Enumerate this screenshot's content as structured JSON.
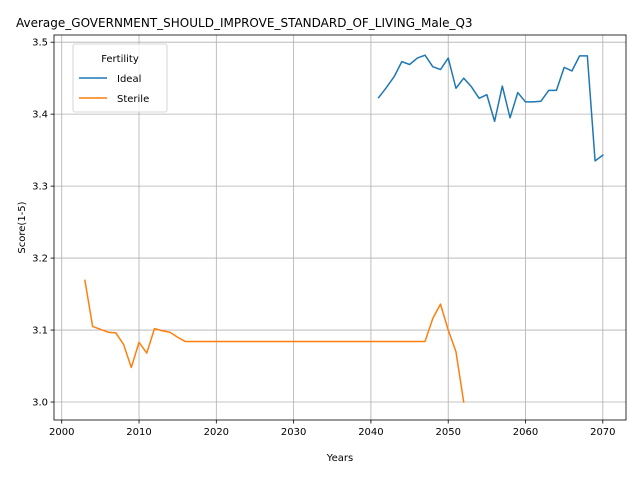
{
  "chart_data": {
    "type": "line",
    "title": "Average_GOVERNMENT_SHOULD_IMPROVE_STANDARD_OF_LIVING_Male_Q3",
    "xlabel": "Years",
    "ylabel": "Score(1-5)",
    "xlim": [
      1999,
      2073
    ],
    "ylim": [
      2.975,
      3.51
    ],
    "xticks": [
      2000,
      2010,
      2020,
      2030,
      2040,
      2050,
      2060,
      2070
    ],
    "yticks": [
      3.0,
      3.1,
      3.2,
      3.3,
      3.4,
      3.5
    ],
    "ytick_labels": [
      "3.0",
      "3.1",
      "3.2",
      "3.3",
      "3.4",
      "3.5"
    ],
    "grid": true,
    "legend": {
      "title": "Fertility",
      "placement": "upper-left"
    },
    "series": [
      {
        "name": "Ideal",
        "color": "#1f77b4",
        "x": [
          2041,
          2042,
          2043,
          2044,
          2045,
          2046,
          2047,
          2048,
          2049,
          2050,
          2051,
          2052,
          2053,
          2054,
          2055,
          2056,
          2057,
          2058,
          2059,
          2060,
          2061,
          2062,
          2063,
          2064,
          2065,
          2066,
          2067,
          2068,
          2069,
          2070
        ],
        "y": [
          3.423,
          3.437,
          3.452,
          3.473,
          3.469,
          3.478,
          3.482,
          3.466,
          3.462,
          3.478,
          3.436,
          3.45,
          3.438,
          3.422,
          3.427,
          3.39,
          3.439,
          3.395,
          3.43,
          3.417,
          3.417,
          3.418,
          3.433,
          3.433,
          3.465,
          3.46,
          3.481,
          3.481,
          3.335,
          3.343
        ]
      },
      {
        "name": "Sterile",
        "color": "#ff7f0e",
        "x": [
          2003,
          2004,
          2005,
          2006,
          2007,
          2008,
          2009,
          2010,
          2011,
          2012,
          2013,
          2014,
          2015,
          2016,
          2017,
          2018,
          2019,
          2020,
          2021,
          2022,
          2023,
          2024,
          2025,
          2026,
          2027,
          2028,
          2029,
          2030,
          2031,
          2032,
          2033,
          2034,
          2035,
          2036,
          2037,
          2038,
          2039,
          2040,
          2041,
          2042,
          2043,
          2044,
          2045,
          2046,
          2047,
          2048,
          2049,
          2050,
          2051,
          2052
        ],
        "y": [
          3.169,
          3.105,
          3.101,
          3.097,
          3.096,
          3.08,
          3.048,
          3.083,
          3.068,
          3.102,
          3.099,
          3.097,
          3.09,
          3.084,
          3.084,
          3.084,
          3.084,
          3.084,
          3.084,
          3.084,
          3.084,
          3.084,
          3.084,
          3.084,
          3.084,
          3.084,
          3.084,
          3.084,
          3.084,
          3.084,
          3.084,
          3.084,
          3.084,
          3.084,
          3.084,
          3.084,
          3.084,
          3.084,
          3.084,
          3.084,
          3.084,
          3.084,
          3.084,
          3.084,
          3.084,
          3.116,
          3.136,
          3.1,
          3.07,
          3.0
        ]
      }
    ]
  }
}
